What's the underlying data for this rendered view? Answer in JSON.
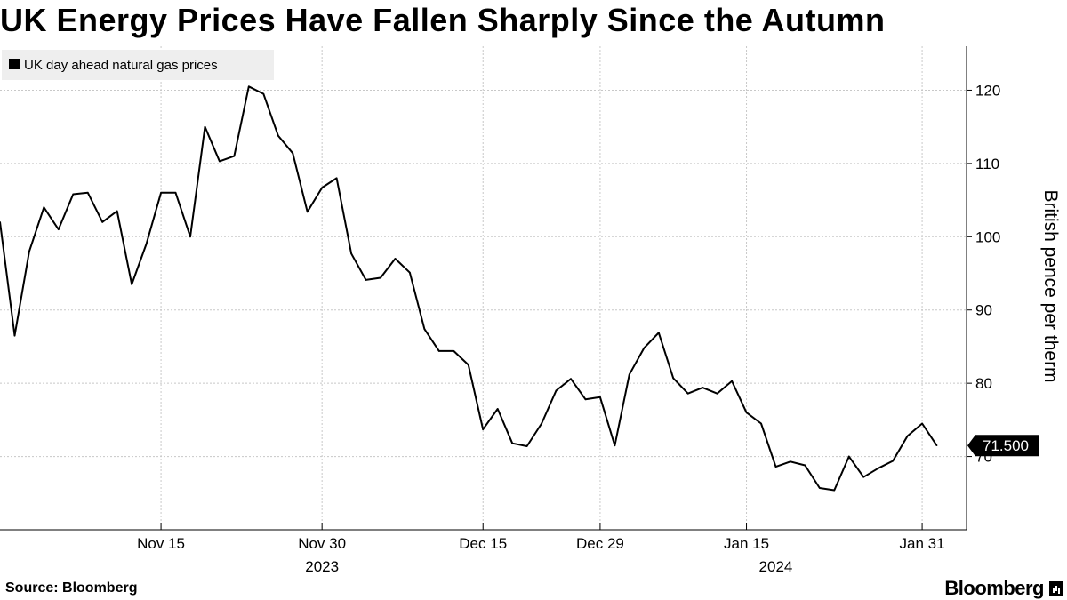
{
  "title": "UK Energy Prices Have Fallen Sharply Since the Autumn",
  "source": "Source: Bloomberg",
  "brand": "Bloomberg",
  "chart_data": {
    "type": "line",
    "title": "UK Energy Prices Have Fallen Sharply Since the Autumn",
    "xlabel": "",
    "ylabel": "British pence per therm",
    "ylim": [
      60,
      126
    ],
    "yticks": [
      70,
      80,
      90,
      100,
      110,
      120
    ],
    "xlim": [
      0,
      65
    ],
    "xticks": [
      {
        "label": "Nov 15",
        "x": 11
      },
      {
        "label": "Nov 30",
        "x": 22
      },
      {
        "label": "Dec 15",
        "x": 33
      },
      {
        "label": "Dec 29",
        "x": 41
      },
      {
        "label": "Jan 15",
        "x": 51
      },
      {
        "label": "Jan 31",
        "x": 63
      }
    ],
    "year_labels": [
      {
        "label": "2023",
        "x": 22
      },
      {
        "label": "2024",
        "x": 53
      }
    ],
    "grid": true,
    "legend_position": "top-left",
    "series": [
      {
        "name": "UK day ahead natural gas prices",
        "color": "#000000",
        "x": [
          0,
          1,
          2,
          3,
          4,
          5,
          6,
          7,
          8,
          9,
          10,
          11,
          12,
          13,
          14,
          15,
          16,
          17,
          18,
          19,
          20,
          21,
          22,
          23,
          24,
          25,
          26,
          27,
          28,
          29,
          30,
          31,
          32,
          33,
          34,
          35,
          36,
          37,
          38,
          39,
          40,
          41,
          42,
          43,
          44,
          45,
          46,
          47,
          48,
          49,
          50,
          51,
          52,
          53,
          54,
          55,
          56,
          57,
          58,
          59,
          60,
          61,
          62,
          63,
          64
        ],
        "values": [
          102.0,
          86.5,
          98.0,
          104.0,
          101.0,
          105.8,
          106.0,
          102.0,
          103.5,
          93.5,
          99.0,
          106.0,
          106.0,
          100.0,
          115.0,
          110.3,
          111.0,
          120.5,
          119.5,
          113.8,
          111.4,
          103.4,
          106.7,
          108.0,
          97.7,
          94.1,
          94.4,
          97.0,
          95.1,
          87.4,
          84.4,
          84.4,
          82.5,
          73.7,
          76.5,
          71.8,
          71.4,
          74.5,
          79.0,
          80.6,
          77.8,
          78.1,
          71.5,
          81.2,
          84.8,
          86.9,
          80.7,
          78.6,
          79.4,
          78.6,
          80.3,
          76.0,
          74.5,
          68.6,
          69.3,
          68.8,
          65.7,
          65.4,
          70.0,
          67.2,
          68.4,
          69.4,
          72.8,
          74.5,
          71.5
        ]
      }
    ],
    "last_value_label": "71.500"
  }
}
